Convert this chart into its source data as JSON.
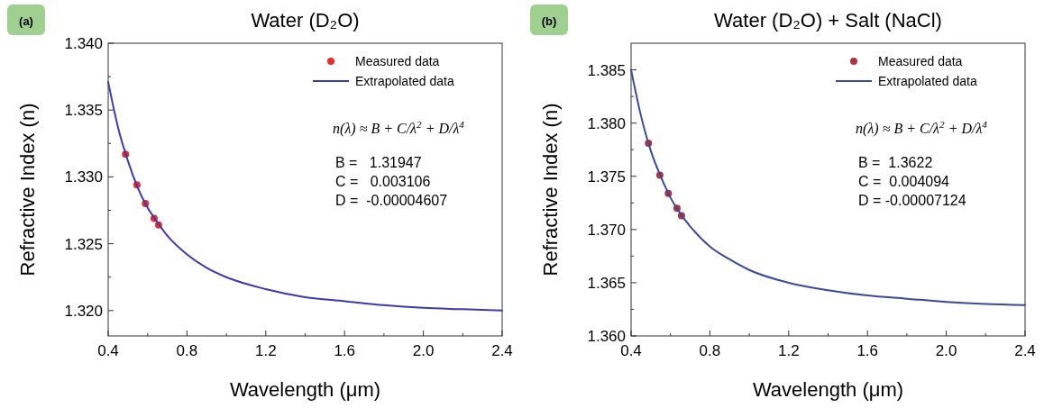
{
  "chart_data": [
    {
      "type": "line",
      "title": "Water (D₂O)",
      "xlabel": "Wavelength (μm)",
      "ylabel": "Refractive Index (n)",
      "xlim": [
        0.4,
        2.4
      ],
      "xticks": [
        0.4,
        {
          "value": 0.6,
          "label": null
        },
        0.8,
        {
          "value": 1.0,
          "label": null
        },
        1.2,
        {
          "value": 1.4,
          "label": null
        },
        1.6,
        {
          "value": 1.8,
          "label": null
        },
        {
          "value": 2.0,
          "label": "2.0"
        },
        {
          "value": 2.2,
          "label": null
        },
        2.4
      ],
      "ylim": [
        1.3181,
        1.34
      ],
      "yticks": [
        {
          "value": 1.32,
          "label": "1.320"
        },
        {
          "value": 1.3225,
          "label": null
        },
        1.325,
        {
          "value": 1.3275,
          "label": null
        },
        {
          "value": 1.33,
          "label": "1.330"
        },
        {
          "value": 1.3325,
          "label": null
        },
        1.335,
        {
          "value": 1.3375,
          "label": null
        },
        {
          "value": 1.34,
          "label": "1.340"
        }
      ],
      "legend": "top right",
      "annotations": [
        "(a)",
        "n(λ) ≈ B + C/λ$^{2}$ + D/λ$^{4}$",
        "B =   1.31947",
        "C =   0.003106",
        "D =  -0.00004607"
      ],
      "series": [
        {
          "name": "Measured data",
          "type": "scatter",
          "marker": "circle",
          "color": "#ee2b2b",
          "x": [
            0.488,
            0.546,
            0.589,
            0.633,
            0.656
          ],
          "values": [
            1.3317,
            1.3294,
            1.328,
            1.3269,
            1.3264
          ]
        },
        {
          "name": "Extrapolated data",
          "line_style": "solid",
          "color": "#3b3bb0",
          "x": [
            0.4,
            0.45,
            0.5,
            0.55,
            0.6,
            0.65,
            0.7,
            0.8,
            0.9,
            1.0,
            1.2,
            1.4,
            1.6,
            1.8,
            2.0,
            2.2,
            2.4
          ],
          "values": [
            1.3371,
            1.3337,
            1.3312,
            1.3292,
            1.3277,
            1.3266,
            1.3256,
            1.3242,
            1.3232,
            1.3225,
            1.3216,
            1.321,
            1.3207,
            1.3204,
            1.3202,
            1.3201,
            1.32
          ]
        }
      ]
    },
    {
      "type": "line",
      "title": "Water (D₂O) + Salt (NaCl)",
      "xlabel": "Wavelength (μm)",
      "ylabel": "Refractive Index (n)",
      "xlim": [
        0.4,
        2.4
      ],
      "xticks": [
        0.4,
        {
          "value": 0.6,
          "label": null
        },
        0.8,
        {
          "value": 1.0,
          "label": null
        },
        1.2,
        {
          "value": 1.4,
          "label": null
        },
        1.6,
        {
          "value": 1.8,
          "label": null
        },
        {
          "value": 2.0,
          "label": "2.0"
        },
        {
          "value": 2.2,
          "label": null
        },
        2.4
      ],
      "ylim": [
        1.36,
        1.3875
      ],
      "yticks": [
        {
          "value": 1.36,
          "label": "1.360"
        },
        {
          "value": 1.3625,
          "label": null
        },
        1.365,
        {
          "value": 1.3675,
          "label": null
        },
        {
          "value": 1.37,
          "label": "1.370"
        },
        {
          "value": 1.3725,
          "label": null
        },
        1.375,
        {
          "value": 1.3775,
          "label": null
        },
        {
          "value": 1.38,
          "label": "1.380"
        },
        {
          "value": 1.3825,
          "label": null
        },
        1.385
      ],
      "legend": "top right",
      "annotations": [
        "(b)",
        "n(λ) ≈ B + C/λ$^{2}$ + D/λ$^{4}$",
        "B =  1.3622",
        "C =  0.004094",
        "D = -0.00007124"
      ],
      "series": [
        {
          "name": "Measured data",
          "type": "scatter",
          "marker": "circle",
          "color": "#b3323f",
          "x": [
            0.488,
            0.546,
            0.589,
            0.633,
            0.656
          ],
          "values": [
            1.3781,
            1.3751,
            1.3734,
            1.372,
            1.3713
          ]
        },
        {
          "name": "Extrapolated data",
          "line_style": "solid",
          "color": "#3a4a98",
          "x": [
            0.4,
            0.45,
            0.5,
            0.55,
            0.6,
            0.65,
            0.7,
            0.8,
            0.9,
            1.0,
            1.2,
            1.4,
            1.6,
            1.8,
            2.0,
            2.2,
            2.4
          ],
          "values": [
            1.385,
            1.3807,
            1.3774,
            1.375,
            1.373,
            1.3715,
            1.3703,
            1.3684,
            1.3672,
            1.3662,
            1.365,
            1.3643,
            1.3638,
            1.3635,
            1.3632,
            1.363,
            1.3629
          ]
        }
      ]
    }
  ]
}
